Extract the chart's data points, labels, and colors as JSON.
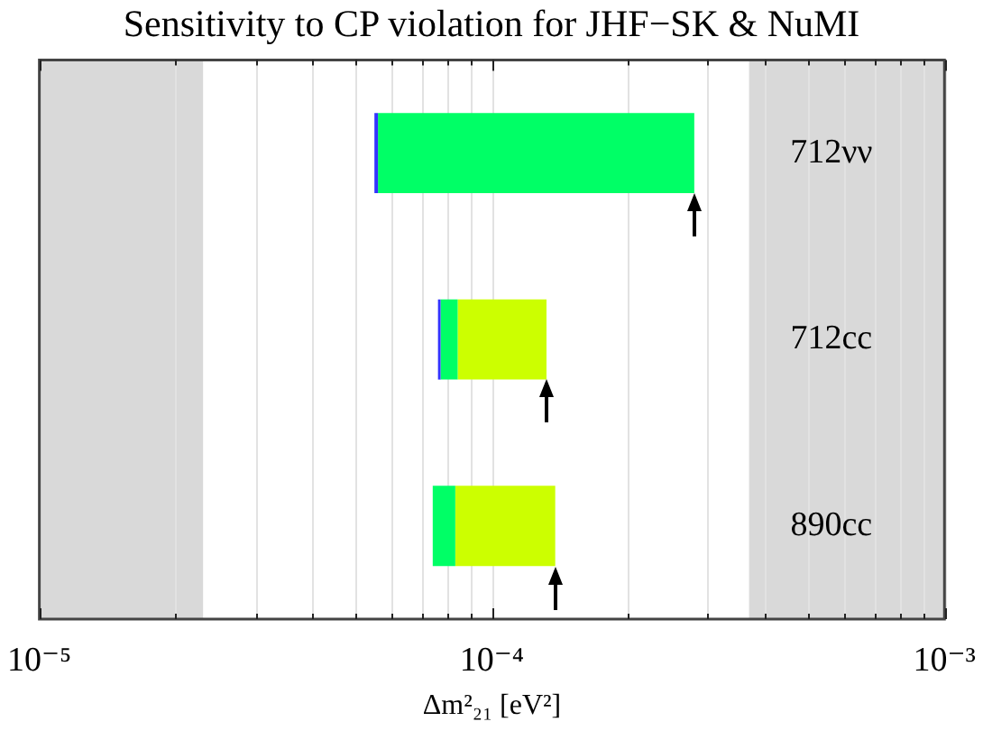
{
  "chart_data": {
    "type": "bar",
    "orientation": "horizontal",
    "title": "Sensitivity to CP violation for JHF−SK & NuMI",
    "xlabel": "Δm²₂₁ [eV²]",
    "categories": [
      "712νν",
      "712cc",
      "890cc"
    ],
    "series": [
      {
        "color": "#3333ff",
        "base": [
          5.5e-05,
          7.6e-05,
          null
        ],
        "values": [
          1e-06,
          1e-06,
          null
        ]
      },
      {
        "color": "#00ff66",
        "base": [
          5.6e-05,
          7.7e-05,
          7.4e-05
        ],
        "values": [
          0.000224,
          7e-06,
          9e-06
        ]
      },
      {
        "color": "#ccff00",
        "base": [
          null,
          8.4e-05,
          8.3e-05
        ],
        "values": [
          null,
          4.8e-05,
          5.5e-05
        ]
      }
    ],
    "log": "x",
    "xlim": [
      1e-05,
      0.001
    ],
    "xticks": [
      {
        "value": 1e-05,
        "label": "10⁻⁵"
      },
      {
        "value": 2e-05,
        "label": null
      },
      {
        "value": 3e-05,
        "label": null
      },
      {
        "value": 4e-05,
        "label": null
      },
      {
        "value": 5e-05,
        "label": null
      },
      {
        "value": 6e-05,
        "label": null
      },
      {
        "value": 7e-05,
        "label": null
      },
      {
        "value": 8e-05,
        "label": null
      },
      {
        "value": 9e-05,
        "label": null
      },
      {
        "value": 0.0001,
        "label": "10⁻⁴"
      },
      {
        "value": 0.0002,
        "label": null
      },
      {
        "value": 0.0003,
        "label": null
      },
      {
        "value": 0.0004,
        "label": null
      },
      {
        "value": 0.0005,
        "label": null
      },
      {
        "value": 0.0006,
        "label": null
      },
      {
        "value": 0.0007,
        "label": null
      },
      {
        "value": 0.0008,
        "label": null
      },
      {
        "value": 0.0009,
        "label": null
      },
      {
        "value": 0.001,
        "label": "10⁻³"
      }
    ],
    "bands": [
      {
        "axis": "x",
        "from": 1e-05,
        "to": 2.3e-05,
        "color": "#d9d9d9"
      },
      {
        "axis": "x",
        "from": 0.00037,
        "to": 0.001,
        "color": "#d9d9d9"
      }
    ],
    "grid": "x",
    "legend": false
  }
}
